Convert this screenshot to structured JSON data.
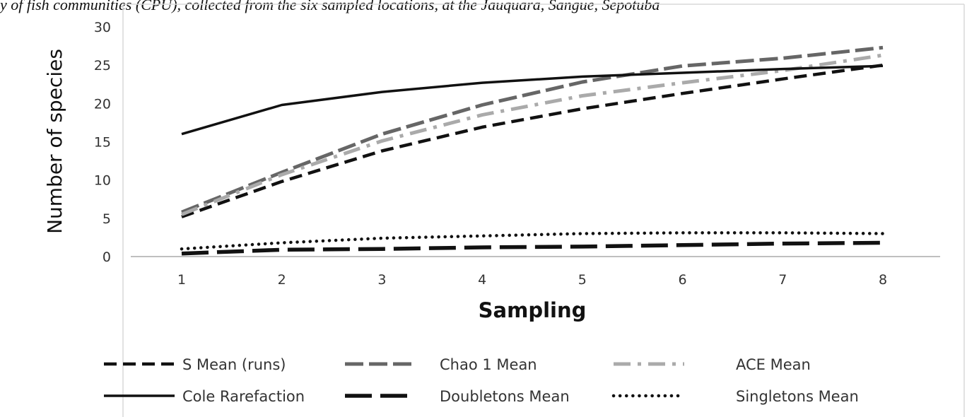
{
  "caption": "y of fish communities (CPU), collected from the six sampled locations, at the Jauquara, Sangue, Sepotuba",
  "chart_data": {
    "type": "line",
    "xlabel": "Sampling",
    "ylabel": "Number of species",
    "x": [
      1,
      2,
      3,
      4,
      5,
      6,
      7,
      8
    ],
    "xlim": [
      1,
      8
    ],
    "ylim": [
      0,
      30
    ],
    "yticks": [
      0,
      5,
      10,
      15,
      20,
      25,
      30
    ],
    "grid": false,
    "legend_position": "bottom",
    "series": [
      {
        "name": "S Mean (runs)",
        "values": [
          5.2,
          9.8,
          13.8,
          16.9,
          19.3,
          21.3,
          23.2,
          25.0
        ],
        "color": "#111111",
        "style": "dashed"
      },
      {
        "name": "Chao 1 Mean",
        "values": [
          5.8,
          11.0,
          16.0,
          19.8,
          22.8,
          24.9,
          25.9,
          27.3
        ],
        "color": "#666666",
        "style": "long-dash"
      },
      {
        "name": "ACE Mean",
        "values": [
          5.5,
          10.7,
          15.1,
          18.5,
          21.0,
          22.7,
          24.3,
          26.3
        ],
        "color": "#aaaaaa",
        "style": "dash-dot"
      },
      {
        "name": "Cole Rarefaction",
        "values": [
          16.0,
          19.8,
          21.5,
          22.7,
          23.5,
          24.0,
          24.5,
          24.9
        ],
        "color": "#111111",
        "style": "solid"
      },
      {
        "name": "Doubletons Mean",
        "values": [
          0.4,
          0.9,
          1.0,
          1.2,
          1.3,
          1.5,
          1.7,
          1.8
        ],
        "color": "#111111",
        "style": "heavy-dash"
      },
      {
        "name": "Singletons Mean",
        "values": [
          1.0,
          1.8,
          2.4,
          2.7,
          3.0,
          3.1,
          3.1,
          3.0
        ],
        "color": "#111111",
        "style": "dotted"
      }
    ]
  }
}
